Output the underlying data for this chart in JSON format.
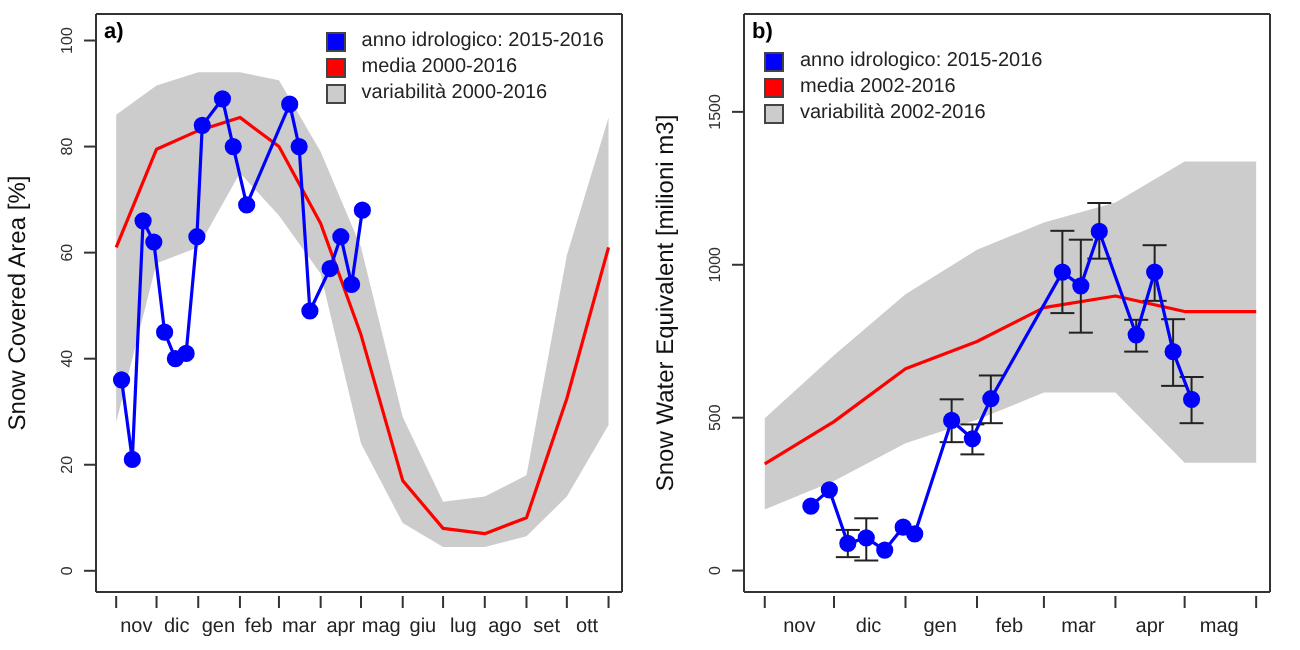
{
  "chart_data": [
    {
      "type": "line",
      "title": "a)",
      "ylabel": "Snow Covered Area [%]",
      "xlim": [
        "2015-10-17",
        "2016-11-11"
      ],
      "ylim": [
        -4,
        105
      ],
      "yticks": [
        0,
        20,
        40,
        60,
        80,
        100
      ],
      "xticks": [
        {
          "value": "2015-11-01",
          "label": null
        },
        {
          "value": "2015-12-01",
          "label": null
        },
        {
          "value": "2016-01-01",
          "label": null
        },
        {
          "value": "2016-02-01",
          "label": null
        },
        {
          "value": "2016-03-01",
          "label": null
        },
        {
          "value": "2016-04-01",
          "label": null
        },
        {
          "value": "2016-05-01",
          "label": null
        },
        {
          "value": "2016-06-01",
          "label": null
        },
        {
          "value": "2016-07-01",
          "label": null
        },
        {
          "value": "2016-08-01",
          "label": null
        },
        {
          "value": "2016-09-01",
          "label": null
        },
        {
          "value": "2016-10-01",
          "label": null
        },
        {
          "value": "2016-11-01",
          "label": null
        },
        {
          "value": "2015-11-16",
          "label": "nov"
        },
        {
          "value": "2015-12-16",
          "label": "dic"
        },
        {
          "value": "2016-01-16",
          "label": "gen"
        },
        {
          "value": "2016-02-15",
          "label": "feb"
        },
        {
          "value": "2016-03-16",
          "label": "mar"
        },
        {
          "value": "2016-04-16",
          "label": "apr"
        },
        {
          "value": "2016-05-16",
          "label": "mag"
        },
        {
          "value": "2016-06-16",
          "label": "giu"
        },
        {
          "value": "2016-07-16",
          "label": "lug"
        },
        {
          "value": "2016-08-16",
          "label": "ago"
        },
        {
          "value": "2016-09-16",
          "label": "set"
        },
        {
          "value": "2016-10-16",
          "label": "ott"
        }
      ],
      "legend": "top right",
      "series": [
        {
          "type": "area",
          "name": "variabilità 2000-2016",
          "color": "#cccccc",
          "x": [
            "2015-11-01",
            "2015-12-01",
            "2016-01-01",
            "2016-02-01",
            "2016-03-01",
            "2016-04-01",
            "2016-05-01",
            "2016-06-01",
            "2016-07-01",
            "2016-08-01",
            "2016-09-01",
            "2016-10-01",
            "2016-11-01"
          ],
          "values": [
            null,
            null,
            null,
            null,
            null,
            null,
            null,
            null,
            null,
            null,
            null,
            null,
            null
          ],
          "lower": [
            28,
            58,
            61,
            75,
            67,
            56,
            24,
            9,
            4.5,
            4.5,
            6.5,
            14,
            27.5
          ],
          "upper": [
            86,
            91.5,
            94,
            94,
            92.5,
            79,
            61,
            29,
            13,
            14,
            18,
            59.5,
            85.5
          ]
        },
        {
          "name": "media 2000-2016",
          "color": "#ff0000",
          "marker": "none",
          "x": [
            "2015-11-01",
            "2015-12-01",
            "2016-01-01",
            "2016-02-01",
            "2016-03-01",
            "2016-04-01",
            "2016-05-01",
            "2016-06-01",
            "2016-07-01",
            "2016-08-01",
            "2016-09-01",
            "2016-10-01",
            "2016-11-01"
          ],
          "values": [
            61,
            79.5,
            83,
            85.5,
            80,
            65.5,
            44.5,
            17,
            8,
            7,
            10,
            32.5,
            61
          ]
        },
        {
          "name": "anno idrologico: 2015-2016",
          "color": "#0000ff",
          "marker": "circle",
          "x": [
            "2015-11-05",
            "2015-11-13",
            "2015-11-21",
            "2015-11-29",
            "2015-12-07",
            "2015-12-15",
            "2015-12-23",
            "2015-12-31",
            "2016-01-04",
            "2016-01-19",
            "2016-01-27",
            "2016-02-06",
            "2016-03-09",
            "2016-03-16",
            "2016-03-24",
            "2016-04-08",
            "2016-04-16",
            "2016-04-24",
            "2016-05-02"
          ],
          "values": [
            36,
            21,
            66,
            62,
            45,
            40,
            41,
            63,
            84,
            89,
            80,
            69,
            88,
            80,
            49,
            57,
            63,
            54,
            68
          ]
        }
      ]
    },
    {
      "type": "line",
      "title": "b)",
      "ylabel": "Snow Water Equivalent [milioni m3]",
      "xlim": [
        "2015-10-23",
        "2016-06-07"
      ],
      "ylim": [
        -70,
        1820
      ],
      "yticks": [
        0,
        500,
        1000,
        1500
      ],
      "xticks": [
        {
          "value": "2015-11-01",
          "label": null
        },
        {
          "value": "2015-12-01",
          "label": null
        },
        {
          "value": "2016-01-01",
          "label": null
        },
        {
          "value": "2016-02-01",
          "label": null
        },
        {
          "value": "2016-03-01",
          "label": null
        },
        {
          "value": "2016-04-01",
          "label": null
        },
        {
          "value": "2016-05-01",
          "label": null
        },
        {
          "value": "2016-06-01",
          "label": null
        },
        {
          "value": "2015-11-16",
          "label": "nov"
        },
        {
          "value": "2015-12-16",
          "label": "dic"
        },
        {
          "value": "2016-01-16",
          "label": "gen"
        },
        {
          "value": "2016-02-15",
          "label": "feb"
        },
        {
          "value": "2016-03-16",
          "label": "mar"
        },
        {
          "value": "2016-04-16",
          "label": "apr"
        },
        {
          "value": "2016-05-16",
          "label": "mag"
        }
      ],
      "legend": "top left",
      "series": [
        {
          "type": "area",
          "name": "variabilità 2002-2016",
          "color": "#cccccc",
          "x": [
            "2015-11-01",
            "2015-12-01",
            "2016-01-01",
            "2016-02-01",
            "2016-03-01",
            "2016-04-01",
            "2016-05-01",
            "2016-06-01"
          ],
          "values": [
            null,
            null,
            null,
            null,
            null,
            null,
            null,
            null
          ],
          "lower": [
            200,
            293,
            416,
            493,
            582,
            582,
            353,
            353
          ],
          "upper": [
            498,
            704,
            904,
            1049,
            1138,
            1204,
            1338,
            1338
          ]
        },
        {
          "name": "media 2002-2016",
          "color": "#ff0000",
          "marker": "none",
          "x": [
            "2015-11-01",
            "2015-12-01",
            "2016-01-01",
            "2016-02-01",
            "2016-03-01",
            "2016-04-01",
            "2016-05-01",
            "2016-06-01"
          ],
          "values": [
            349,
            487,
            660,
            749,
            860,
            898,
            847,
            847
          ]
        },
        {
          "name": "anno idrologico: 2015-2016",
          "color": "#0000ff",
          "marker": "circle",
          "x": [
            "2015-11-21",
            "2015-11-29",
            "2015-12-07",
            "2015-12-15",
            "2015-12-23",
            "2015-12-31",
            "2016-01-05",
            "2016-01-21",
            "2016-01-30",
            "2016-02-07",
            "2016-03-09",
            "2016-03-17",
            "2016-03-25",
            "2016-04-10",
            "2016-04-18",
            "2016-04-26",
            "2016-05-04"
          ],
          "values": [
            211,
            264,
            89,
            107,
            67,
            142,
            120,
            491,
            431,
            562,
            976,
            931,
            1109,
            771,
            976,
            716,
            560
          ],
          "errors": [
            null,
            null,
            [
              44,
              133
            ],
            [
              33,
              171
            ],
            null,
            null,
            null,
            [
              420,
              560
            ],
            [
              380,
              478
            ],
            [
              482,
              638
            ],
            [
              842,
              1111
            ],
            [
              778,
              1082
            ],
            [
              1020,
              1202
            ],
            [
              716,
              820
            ],
            [
              882,
              1064
            ],
            [
              604,
              822
            ],
            [
              482,
              633
            ]
          ]
        }
      ]
    }
  ]
}
